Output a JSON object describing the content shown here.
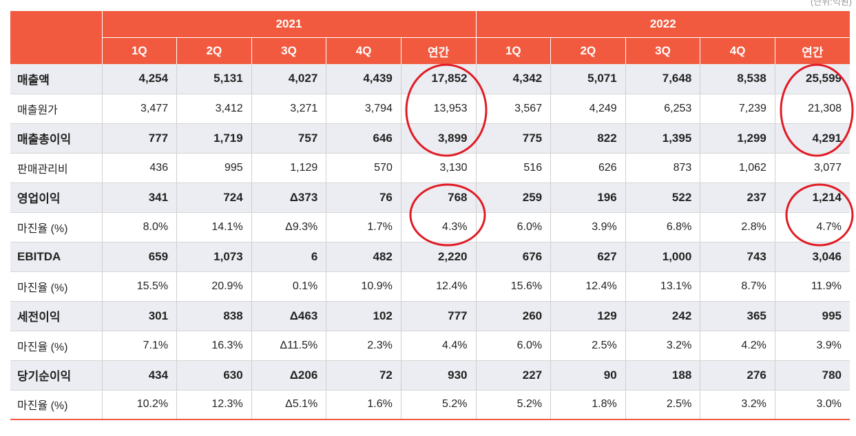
{
  "unit_label": "(단위:억원)",
  "years": [
    "2021",
    "2022"
  ],
  "quarters": [
    "1Q",
    "2Q",
    "3Q",
    "4Q",
    "연간"
  ],
  "rows": [
    {
      "label": "매출액",
      "bold": true,
      "values": [
        "4,254",
        "5,131",
        "4,027",
        "4,439",
        "17,852",
        "4,342",
        "5,071",
        "7,648",
        "8,538",
        "25,599"
      ]
    },
    {
      "label": "매출원가",
      "bold": false,
      "values": [
        "3,477",
        "3,412",
        "3,271",
        "3,794",
        "13,953",
        "3,567",
        "4,249",
        "6,253",
        "7,239",
        "21,308"
      ]
    },
    {
      "label": "매출총이익",
      "bold": true,
      "values": [
        "777",
        "1,719",
        "757",
        "646",
        "3,899",
        "775",
        "822",
        "1,395",
        "1,299",
        "4,291"
      ]
    },
    {
      "label": "판매관리비",
      "bold": false,
      "values": [
        "436",
        "995",
        "1,129",
        "570",
        "3,130",
        "516",
        "626",
        "873",
        "1,062",
        "3,077"
      ]
    },
    {
      "label": "영업이익",
      "bold": true,
      "values": [
        "341",
        "724",
        "Δ373",
        "76",
        "768",
        "259",
        "196",
        "522",
        "237",
        "1,214"
      ]
    },
    {
      "label": "마진율 (%)",
      "bold": false,
      "values": [
        "8.0%",
        "14.1%",
        "Δ9.3%",
        "1.7%",
        "4.3%",
        "6.0%",
        "3.9%",
        "6.8%",
        "2.8%",
        "4.7%"
      ]
    },
    {
      "label": "EBITDA",
      "bold": true,
      "values": [
        "659",
        "1,073",
        "6",
        "482",
        "2,220",
        "676",
        "627",
        "1,000",
        "743",
        "3,046"
      ]
    },
    {
      "label": "마진율 (%)",
      "bold": false,
      "values": [
        "15.5%",
        "20.9%",
        "0.1%",
        "10.9%",
        "12.4%",
        "15.6%",
        "12.4%",
        "13.1%",
        "8.7%",
        "11.9%"
      ]
    },
    {
      "label": "세전이익",
      "bold": true,
      "values": [
        "301",
        "838",
        "Δ463",
        "102",
        "777",
        "260",
        "129",
        "242",
        "365",
        "995"
      ]
    },
    {
      "label": "마진율 (%)",
      "bold": false,
      "values": [
        "7.1%",
        "16.3%",
        "Δ11.5%",
        "2.3%",
        "4.4%",
        "6.0%",
        "2.5%",
        "3.2%",
        "4.2%",
        "3.9%"
      ]
    },
    {
      "label": "당기순이익",
      "bold": true,
      "values": [
        "434",
        "630",
        "Δ206",
        "72",
        "930",
        "227",
        "90",
        "188",
        "276",
        "780"
      ]
    },
    {
      "label": "마진율 (%)",
      "bold": false,
      "values": [
        "10.2%",
        "12.3%",
        "Δ5.1%",
        "1.6%",
        "5.2%",
        "5.2%",
        "1.8%",
        "2.5%",
        "3.2%",
        "3.0%"
      ]
    }
  ],
  "colors": {
    "header": "#f15a3f",
    "bold_row_bg": "#ecedf2",
    "annotation": "#e01b24"
  }
}
